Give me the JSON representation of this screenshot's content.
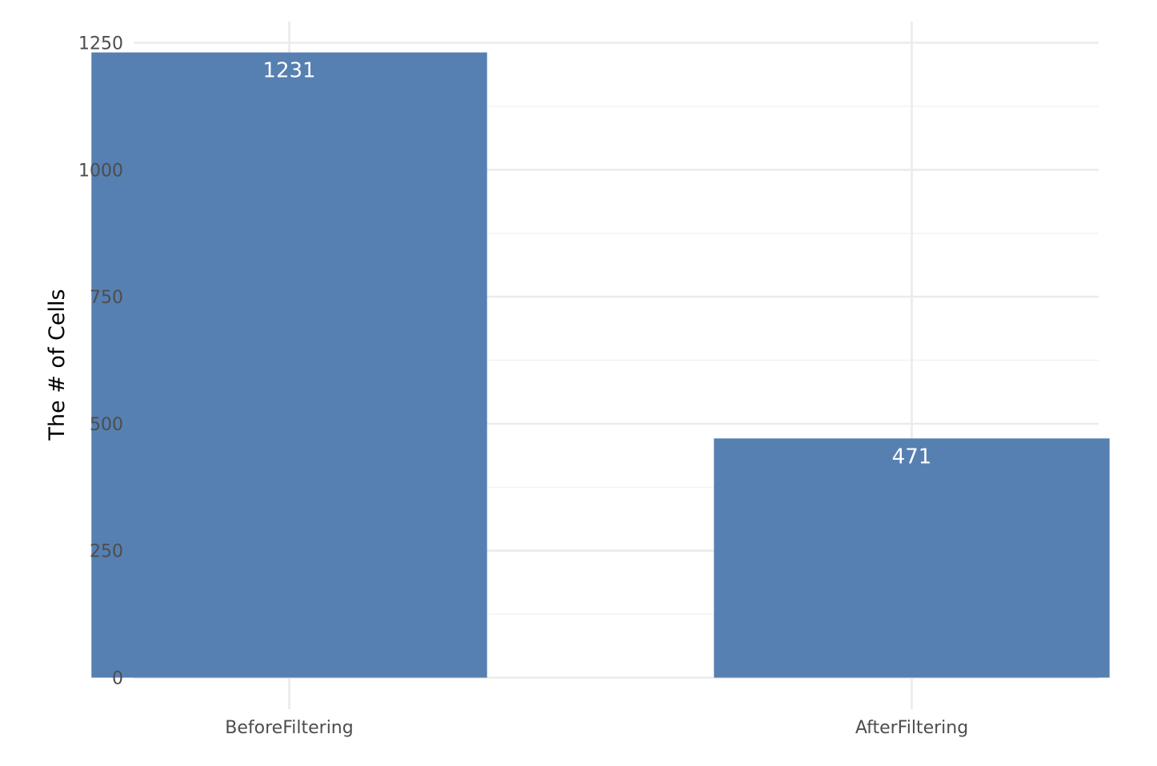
{
  "chart_data": {
    "type": "bar",
    "title": "",
    "xlabel": "",
    "ylabel": "The # of Cells",
    "categories": [
      "BeforeFiltering",
      "AfterFiltering"
    ],
    "values": [
      1231,
      471
    ],
    "data_labels": [
      "1231",
      "471"
    ],
    "ylim": [
      0,
      1250
    ],
    "y_ticks": [
      0,
      250,
      500,
      750,
      1000,
      1250
    ],
    "y_tick_labels": [
      "0",
      "250",
      "500",
      "750",
      "1000",
      "1250"
    ],
    "grid": true,
    "legend": "none",
    "colors": {
      "bar": "#5680b1",
      "data_label": "#ffffff"
    }
  }
}
